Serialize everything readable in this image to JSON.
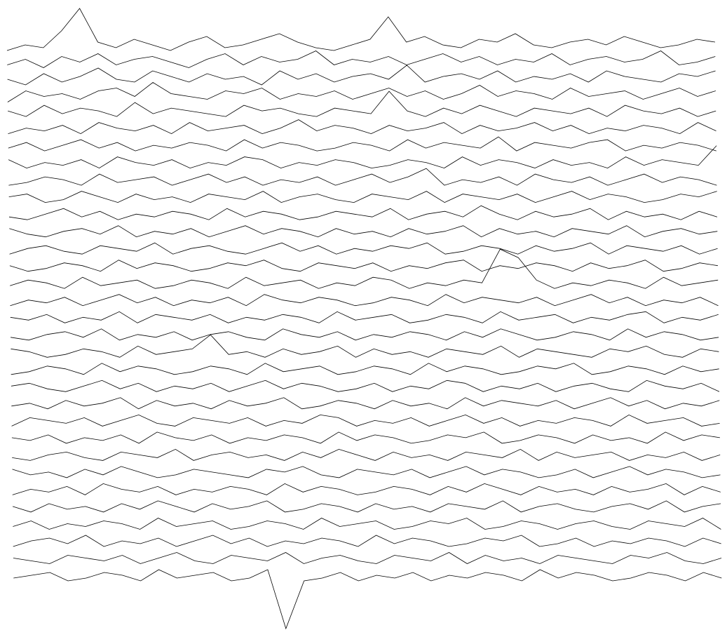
{
  "chart_data": {
    "type": "ridgeline",
    "color": "#000000",
    "series": [
      {
        "values": [
          2,
          4,
          3,
          9,
          17,
          5,
          3,
          6,
          4,
          2,
          5,
          7,
          3,
          4,
          6,
          8,
          5,
          3,
          2,
          4,
          6,
          14,
          5,
          7,
          4,
          3,
          6,
          5,
          8,
          4,
          3,
          5,
          6,
          4,
          7,
          5,
          3,
          4,
          6,
          5
        ]
      },
      {
        "values": [
          3,
          5,
          2,
          6,
          4,
          7,
          3,
          5,
          6,
          4,
          2,
          5,
          7,
          3,
          6,
          4,
          5,
          8,
          3,
          5,
          4,
          6,
          3,
          5,
          7,
          4,
          6,
          3,
          5,
          4,
          7,
          3,
          5,
          6,
          4,
          5,
          8,
          3,
          4,
          6
        ]
      },
      {
        "values": [
          4,
          2,
          6,
          3,
          5,
          8,
          4,
          3,
          7,
          5,
          3,
          6,
          4,
          5,
          2,
          7,
          4,
          6,
          3,
          5,
          6,
          4,
          9,
          3,
          5,
          6,
          4,
          7,
          3,
          5,
          4,
          6,
          3,
          7,
          5,
          4,
          3,
          6,
          5,
          7
        ]
      },
      {
        "values": [
          2,
          6,
          4,
          5,
          3,
          6,
          7,
          4,
          9,
          5,
          4,
          3,
          6,
          5,
          7,
          3,
          5,
          4,
          6,
          3,
          5,
          7,
          4,
          6,
          3,
          5,
          8,
          4,
          6,
          5,
          3,
          7,
          4,
          5,
          6,
          3,
          5,
          7,
          4,
          6
        ]
      },
      {
        "values": [
          5,
          3,
          7,
          4,
          6,
          5,
          3,
          8,
          4,
          6,
          5,
          4,
          3,
          7,
          5,
          6,
          4,
          3,
          6,
          5,
          4,
          12,
          5,
          3,
          6,
          4,
          7,
          5,
          3,
          6,
          5,
          4,
          6,
          3,
          7,
          5,
          4,
          6,
          3,
          5
        ]
      },
      {
        "values": [
          3,
          5,
          4,
          6,
          3,
          7,
          5,
          4,
          6,
          3,
          7,
          4,
          5,
          6,
          3,
          5,
          8,
          4,
          6,
          5,
          3,
          6,
          4,
          5,
          7,
          3,
          6,
          4,
          5,
          7,
          4,
          6,
          3,
          5,
          4,
          6,
          5,
          3,
          7,
          4
        ]
      },
      {
        "values": [
          4,
          6,
          3,
          5,
          7,
          4,
          6,
          3,
          5,
          4,
          6,
          5,
          3,
          7,
          4,
          6,
          5,
          3,
          4,
          6,
          5,
          3,
          7,
          4,
          6,
          5,
          4,
          8,
          3,
          6,
          5,
          4,
          6,
          7,
          3,
          5,
          4,
          6,
          5,
          3
        ]
      },
      {
        "values": [
          6,
          3,
          5,
          4,
          6,
          3,
          7,
          5,
          4,
          6,
          3,
          5,
          4,
          7,
          6,
          3,
          5,
          4,
          6,
          5,
          3,
          4,
          6,
          5,
          3,
          7,
          4,
          6,
          5,
          3,
          6,
          4,
          5,
          3,
          7,
          4,
          6,
          5,
          4,
          11
        ]
      },
      {
        "values": [
          3,
          4,
          6,
          5,
          3,
          7,
          4,
          5,
          6,
          3,
          5,
          7,
          4,
          6,
          3,
          5,
          4,
          6,
          3,
          5,
          7,
          4,
          6,
          9,
          3,
          5,
          4,
          6,
          3,
          7,
          5,
          4,
          6,
          3,
          5,
          7,
          4,
          6,
          5,
          3
        ]
      },
      {
        "values": [
          5,
          6,
          3,
          4,
          7,
          5,
          3,
          6,
          4,
          5,
          3,
          6,
          5,
          4,
          7,
          3,
          5,
          6,
          4,
          3,
          6,
          5,
          4,
          7,
          3,
          6,
          5,
          4,
          6,
          3,
          5,
          7,
          4,
          6,
          5,
          3,
          4,
          6,
          5,
          7
        ]
      },
      {
        "values": [
          4,
          3,
          5,
          7,
          4,
          6,
          3,
          5,
          4,
          6,
          5,
          3,
          7,
          4,
          6,
          5,
          3,
          4,
          6,
          5,
          4,
          7,
          3,
          5,
          6,
          4,
          8,
          5,
          3,
          6,
          4,
          5,
          7,
          3,
          6,
          4,
          5,
          3,
          6,
          4
        ]
      },
      {
        "values": [
          6,
          4,
          3,
          5,
          6,
          4,
          7,
          3,
          5,
          4,
          6,
          3,
          5,
          7,
          4,
          6,
          5,
          3,
          6,
          4,
          5,
          3,
          6,
          4,
          5,
          7,
          3,
          6,
          4,
          5,
          3,
          6,
          5,
          4,
          7,
          3,
          5,
          6,
          4,
          5
        ]
      },
      {
        "values": [
          3,
          5,
          6,
          4,
          3,
          6,
          5,
          4,
          7,
          3,
          5,
          6,
          4,
          3,
          5,
          7,
          4,
          6,
          3,
          5,
          4,
          6,
          5,
          7,
          3,
          4,
          6,
          5,
          3,
          6,
          4,
          5,
          7,
          3,
          6,
          5,
          4,
          6,
          3,
          5
        ]
      },
      {
        "values": [
          5,
          3,
          4,
          6,
          5,
          3,
          7,
          4,
          6,
          5,
          3,
          4,
          6,
          5,
          7,
          4,
          3,
          6,
          5,
          4,
          6,
          3,
          5,
          4,
          6,
          7,
          3,
          5,
          4,
          6,
          5,
          3,
          6,
          4,
          5,
          7,
          3,
          4,
          6,
          5
        ]
      },
      {
        "values": [
          4,
          6,
          5,
          3,
          7,
          4,
          5,
          6,
          3,
          4,
          6,
          5,
          3,
          7,
          4,
          5,
          6,
          3,
          5,
          4,
          7,
          6,
          3,
          5,
          4,
          6,
          5,
          17,
          14,
          6,
          3,
          5,
          4,
          6,
          5,
          3,
          7,
          4,
          5,
          6
        ]
      },
      {
        "values": [
          3,
          5,
          4,
          6,
          3,
          5,
          7,
          4,
          6,
          3,
          5,
          4,
          6,
          3,
          7,
          5,
          4,
          6,
          5,
          3,
          4,
          6,
          5,
          3,
          7,
          4,
          6,
          5,
          4,
          6,
          3,
          5,
          7,
          4,
          6,
          3,
          5,
          4,
          6,
          3
        ]
      },
      {
        "values": [
          5,
          4,
          6,
          3,
          5,
          4,
          7,
          3,
          6,
          5,
          4,
          6,
          3,
          5,
          4,
          6,
          5,
          3,
          7,
          4,
          5,
          6,
          3,
          4,
          6,
          5,
          3,
          7,
          4,
          5,
          6,
          3,
          5,
          4,
          6,
          7,
          3,
          5,
          4,
          6
        ]
      },
      {
        "values": [
          4,
          3,
          5,
          6,
          4,
          7,
          3,
          5,
          4,
          6,
          3,
          5,
          6,
          4,
          3,
          7,
          5,
          4,
          6,
          3,
          5,
          4,
          6,
          5,
          3,
          6,
          4,
          7,
          5,
          3,
          4,
          6,
          5,
          3,
          7,
          4,
          6,
          5,
          3,
          4
        ]
      },
      {
        "values": [
          6,
          5,
          3,
          4,
          6,
          5,
          3,
          7,
          4,
          5,
          6,
          11,
          4,
          5,
          3,
          6,
          4,
          5,
          7,
          3,
          6,
          4,
          5,
          3,
          6,
          5,
          4,
          7,
          3,
          6,
          5,
          4,
          3,
          6,
          5,
          7,
          4,
          3,
          6,
          5
        ]
      },
      {
        "values": [
          3,
          4,
          6,
          5,
          3,
          7,
          4,
          6,
          5,
          3,
          4,
          6,
          5,
          3,
          7,
          4,
          5,
          6,
          3,
          4,
          6,
          5,
          3,
          7,
          4,
          6,
          5,
          3,
          4,
          6,
          5,
          7,
          3,
          4,
          6,
          5,
          3,
          6,
          4,
          5
        ]
      },
      {
        "values": [
          5,
          6,
          4,
          3,
          5,
          7,
          4,
          6,
          3,
          5,
          4,
          6,
          3,
          5,
          7,
          4,
          6,
          5,
          3,
          4,
          6,
          3,
          5,
          4,
          7,
          6,
          3,
          5,
          4,
          6,
          3,
          5,
          6,
          4,
          3,
          7,
          5,
          4,
          6,
          3
        ]
      },
      {
        "values": [
          4,
          5,
          3,
          6,
          4,
          5,
          7,
          3,
          6,
          4,
          5,
          3,
          6,
          4,
          5,
          7,
          3,
          4,
          6,
          5,
          3,
          6,
          4,
          5,
          3,
          7,
          4,
          6,
          5,
          4,
          6,
          3,
          5,
          7,
          4,
          6,
          3,
          5,
          4,
          6
        ]
      },
      {
        "values": [
          3,
          6,
          5,
          4,
          6,
          3,
          5,
          7,
          4,
          3,
          6,
          5,
          4,
          6,
          3,
          5,
          4,
          7,
          6,
          3,
          5,
          4,
          6,
          3,
          5,
          7,
          4,
          6,
          3,
          5,
          4,
          6,
          5,
          3,
          7,
          4,
          5,
          6,
          3,
          4
        ]
      },
      {
        "values": [
          5,
          4,
          6,
          3,
          5,
          4,
          6,
          3,
          7,
          5,
          4,
          6,
          3,
          5,
          4,
          6,
          5,
          3,
          7,
          4,
          6,
          5,
          3,
          4,
          6,
          5,
          7,
          3,
          4,
          6,
          5,
          3,
          6,
          4,
          5,
          3,
          7,
          4,
          6,
          5
        ]
      },
      {
        "values": [
          4,
          3,
          5,
          6,
          4,
          3,
          6,
          5,
          4,
          7,
          3,
          5,
          6,
          4,
          5,
          3,
          6,
          4,
          7,
          5,
          3,
          6,
          4,
          5,
          3,
          6,
          5,
          4,
          7,
          3,
          6,
          4,
          5,
          6,
          3,
          5,
          4,
          6,
          3,
          5
        ]
      },
      {
        "values": [
          6,
          4,
          5,
          3,
          6,
          4,
          7,
          5,
          3,
          4,
          6,
          5,
          4,
          3,
          6,
          5,
          7,
          4,
          3,
          6,
          5,
          4,
          6,
          3,
          5,
          7,
          4,
          6,
          5,
          3,
          4,
          6,
          3,
          5,
          7,
          4,
          6,
          5,
          3,
          4
        ]
      },
      {
        "values": [
          3,
          5,
          4,
          6,
          3,
          7,
          5,
          4,
          6,
          3,
          5,
          4,
          6,
          5,
          3,
          7,
          4,
          6,
          5,
          3,
          4,
          6,
          5,
          3,
          6,
          4,
          7,
          5,
          3,
          6,
          4,
          5,
          3,
          6,
          4,
          5,
          7,
          3,
          6,
          4
        ]
      },
      {
        "values": [
          5,
          3,
          6,
          4,
          5,
          3,
          6,
          4,
          7,
          5,
          3,
          6,
          4,
          5,
          7,
          3,
          4,
          6,
          5,
          3,
          6,
          4,
          5,
          3,
          6,
          5,
          4,
          7,
          3,
          5,
          6,
          4,
          3,
          5,
          6,
          4,
          7,
          3,
          5,
          6
        ]
      },
      {
        "values": [
          4,
          6,
          3,
          5,
          4,
          6,
          5,
          3,
          7,
          4,
          5,
          6,
          3,
          4,
          6,
          5,
          3,
          7,
          4,
          5,
          6,
          3,
          4,
          6,
          5,
          7,
          3,
          4,
          6,
          5,
          3,
          5,
          6,
          4,
          3,
          6,
          5,
          4,
          7,
          3
        ]
      },
      {
        "values": [
          3,
          5,
          6,
          4,
          7,
          3,
          5,
          4,
          6,
          3,
          5,
          7,
          4,
          6,
          3,
          5,
          4,
          6,
          5,
          3,
          7,
          4,
          6,
          5,
          3,
          4,
          6,
          5,
          7,
          3,
          4,
          6,
          3,
          5,
          4,
          6,
          5,
          3,
          6,
          4
        ]
      },
      {
        "values": [
          5,
          4,
          3,
          6,
          5,
          4,
          6,
          3,
          5,
          7,
          4,
          3,
          6,
          5,
          4,
          7,
          3,
          5,
          6,
          4,
          3,
          6,
          5,
          4,
          7,
          3,
          6,
          4,
          5,
          3,
          6,
          5,
          4,
          3,
          6,
          5,
          7,
          4,
          3,
          5
        ]
      },
      {
        "values": [
          4,
          5,
          6,
          3,
          4,
          6,
          5,
          3,
          7,
          4,
          5,
          6,
          3,
          4,
          7,
          -14,
          3,
          4,
          6,
          3,
          5,
          4,
          6,
          3,
          5,
          4,
          6,
          5,
          3,
          7,
          4,
          6,
          5,
          3,
          4,
          6,
          5,
          3,
          6,
          4
        ]
      }
    ]
  }
}
